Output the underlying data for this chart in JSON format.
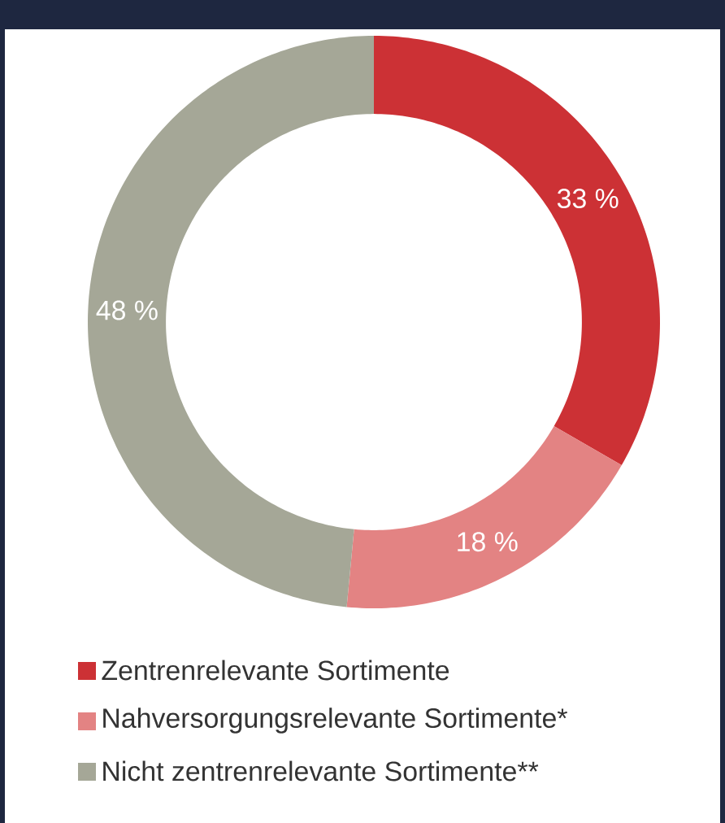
{
  "chart_data": {
    "type": "donut",
    "categories": [
      "Zentrenrelevante Sortimente",
      "Nahversorgungsrelevante Sortimente*",
      "Nicht zentrenrelevante Sortimente**"
    ],
    "values": [
      33,
      18,
      48
    ],
    "value_labels": [
      "33 %",
      "18 %",
      "48 %"
    ],
    "colors": [
      "#cc3135",
      "#e38383",
      "#a5a797"
    ],
    "legend": "bottom"
  }
}
